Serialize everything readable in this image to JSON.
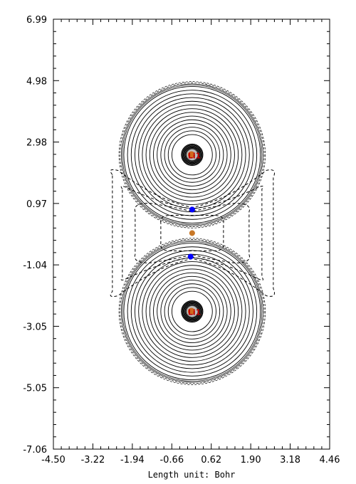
{
  "chart_data": {
    "type": "contour",
    "xlabel": "Length unit: Bohr",
    "ylabel": "",
    "xlim": [
      -4.5,
      4.46
    ],
    "ylim": [
      -7.06,
      6.99
    ],
    "x_ticks": [
      "-4.50",
      "-3.22",
      "-1.94",
      "-0.66",
      "0.62",
      "1.90",
      "3.18",
      "4.46"
    ],
    "y_ticks": [
      "6.99",
      "4.98",
      "2.98",
      "0.97",
      "-1.04",
      "-3.05",
      "-5.05",
      "-7.06"
    ],
    "atoms": [
      {
        "label": "Li1",
        "x": 0.0,
        "y": 2.56,
        "color": "#d2691e"
      },
      {
        "label": "Li1",
        "x": 0.0,
        "y": -2.56,
        "color": "#d2691e"
      }
    ],
    "critical_points": [
      {
        "x": 0.0,
        "y": 0.77,
        "color": "#0000ff"
      },
      {
        "x": -0.05,
        "y": -0.77,
        "color": "#0000ff"
      },
      {
        "x": 0.0,
        "y": 0.0,
        "color": "#c87828"
      }
    ],
    "colors": {
      "positive_contour": "#000000",
      "negative_contour": "#000000",
      "bond_cp": "#0000ff",
      "ring_cp": "#c87828",
      "atom": "#d2691e"
    }
  }
}
